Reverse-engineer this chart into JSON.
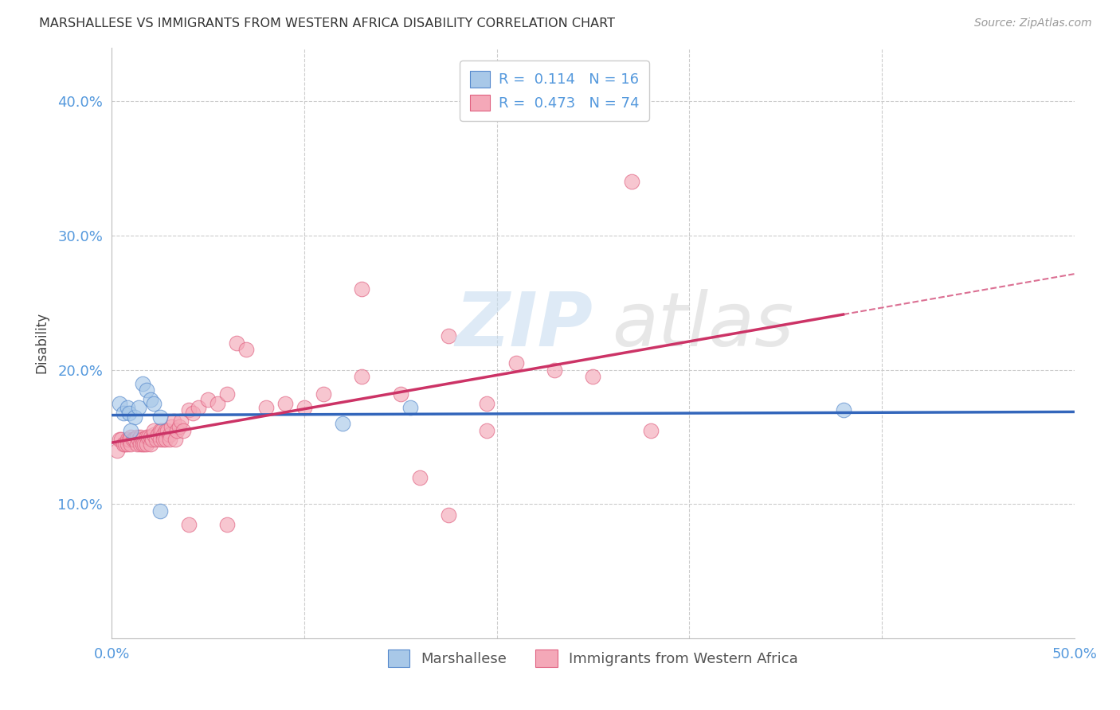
{
  "title": "MARSHALLESE VS IMMIGRANTS FROM WESTERN AFRICA DISABILITY CORRELATION CHART",
  "source": "Source: ZipAtlas.com",
  "ylabel": "Disability",
  "xlim": [
    0.0,
    0.5
  ],
  "ylim": [
    0.0,
    0.44
  ],
  "yticks": [
    0.1,
    0.2,
    0.3,
    0.4
  ],
  "yticklabels": [
    "10.0%",
    "20.0%",
    "30.0%",
    "40.0%"
  ],
  "xtick_positions": [
    0.0,
    0.1,
    0.2,
    0.3,
    0.4,
    0.5
  ],
  "xticklabels": [
    "0.0%",
    "",
    "",
    "",
    "",
    "50.0%"
  ],
  "background_color": "#ffffff",
  "grid_color": "#cccccc",
  "blue_R": "0.114",
  "blue_N": "16",
  "pink_R": "0.473",
  "pink_N": "74",
  "blue_scatter_color": "#a8c8e8",
  "blue_edge_color": "#5588cc",
  "pink_scatter_color": "#f4a8b8",
  "pink_edge_color": "#e06080",
  "blue_line_color": "#3366bb",
  "pink_line_color": "#cc3366",
  "tick_color": "#5599dd",
  "blue_x": [
    0.004,
    0.006,
    0.008,
    0.009,
    0.012,
    0.014,
    0.016,
    0.018,
    0.02,
    0.022,
    0.025,
    0.12,
    0.155,
    0.38,
    0.025,
    0.01
  ],
  "blue_y": [
    0.175,
    0.168,
    0.172,
    0.168,
    0.165,
    0.172,
    0.19,
    0.185,
    0.178,
    0.175,
    0.165,
    0.16,
    0.172,
    0.17,
    0.095,
    0.155
  ],
  "pink_x": [
    0.003,
    0.004,
    0.005,
    0.006,
    0.007,
    0.008,
    0.008,
    0.009,
    0.01,
    0.01,
    0.011,
    0.012,
    0.013,
    0.013,
    0.014,
    0.015,
    0.015,
    0.016,
    0.016,
    0.017,
    0.018,
    0.018,
    0.019,
    0.02,
    0.02,
    0.021,
    0.022,
    0.022,
    0.023,
    0.024,
    0.025,
    0.025,
    0.026,
    0.027,
    0.027,
    0.028,
    0.028,
    0.029,
    0.03,
    0.03,
    0.031,
    0.032,
    0.033,
    0.034,
    0.035,
    0.036,
    0.037,
    0.04,
    0.042,
    0.045,
    0.05,
    0.055,
    0.06,
    0.065,
    0.07,
    0.08,
    0.09,
    0.1,
    0.11,
    0.13,
    0.15,
    0.16,
    0.175,
    0.195,
    0.21,
    0.23,
    0.25,
    0.28,
    0.13,
    0.175,
    0.195,
    0.27,
    0.04,
    0.06
  ],
  "pink_y": [
    0.14,
    0.148,
    0.148,
    0.145,
    0.145,
    0.148,
    0.145,
    0.148,
    0.15,
    0.145,
    0.148,
    0.148,
    0.15,
    0.145,
    0.148,
    0.15,
    0.145,
    0.148,
    0.145,
    0.145,
    0.15,
    0.145,
    0.15,
    0.15,
    0.145,
    0.148,
    0.152,
    0.155,
    0.148,
    0.152,
    0.155,
    0.148,
    0.155,
    0.152,
    0.148,
    0.155,
    0.148,
    0.155,
    0.152,
    0.148,
    0.158,
    0.162,
    0.148,
    0.155,
    0.158,
    0.162,
    0.155,
    0.17,
    0.168,
    0.172,
    0.178,
    0.175,
    0.182,
    0.22,
    0.215,
    0.172,
    0.175,
    0.172,
    0.182,
    0.195,
    0.182,
    0.12,
    0.092,
    0.155,
    0.205,
    0.2,
    0.195,
    0.155,
    0.26,
    0.225,
    0.175,
    0.34,
    0.085,
    0.085
  ]
}
